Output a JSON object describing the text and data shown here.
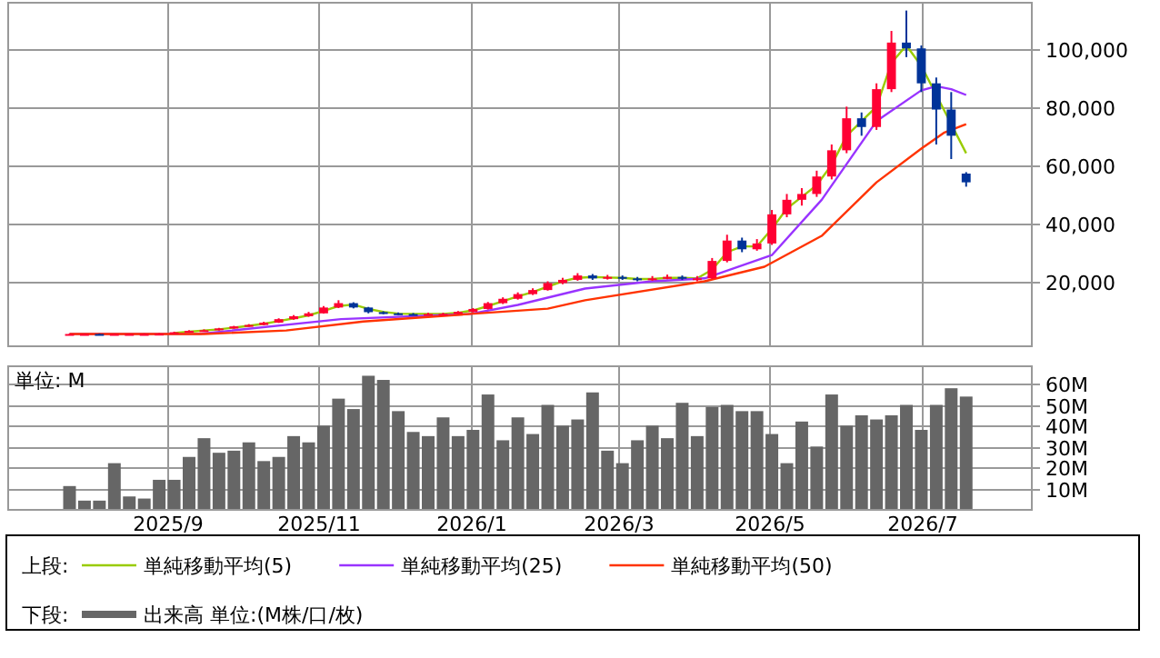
{
  "chart_data": [
    {
      "type": "candlestick",
      "legend": "bottom",
      "legend_title": "上段:",
      "grid": true,
      "tick_labels": "y",
      "x": [
        "2025-07-24",
        "2025-07-30",
        "2025-08-05",
        "2025-08-11",
        "2025-08-17",
        "2025-08-23",
        "2025-08-29",
        "2025-09-04",
        "2025-09-10",
        "2025-09-16",
        "2025-09-22",
        "2025-09-28",
        "2025-10-04",
        "2025-10-10",
        "2025-10-16",
        "2025-10-22",
        "2025-10-28",
        "2025-11-03",
        "2025-11-09",
        "2025-11-15",
        "2025-11-21",
        "2025-11-27",
        "2025-12-03",
        "2025-12-09",
        "2025-12-15",
        "2025-12-21",
        "2025-12-27",
        "2026-01-02",
        "2026-01-08",
        "2026-01-14",
        "2026-01-20",
        "2026-01-26",
        "2026-02-01",
        "2026-02-07",
        "2026-02-13",
        "2026-02-19",
        "2026-02-25",
        "2026-03-03",
        "2026-03-09",
        "2026-03-15",
        "2026-03-21",
        "2026-03-27",
        "2026-04-02",
        "2026-04-08",
        "2026-04-14",
        "2026-04-20",
        "2026-04-26",
        "2026-05-02",
        "2026-05-08",
        "2026-05-14",
        "2026-05-20",
        "2026-05-26",
        "2026-06-01",
        "2026-06-07",
        "2026-06-13",
        "2026-06-19",
        "2026-06-25",
        "2026-07-01",
        "2026-07-07",
        "2026-07-13",
        "2026-07-19"
      ],
      "ohlc": [
        [
          1800,
          2000,
          1700,
          1900
        ],
        [
          1900,
          2000,
          1800,
          1900
        ],
        [
          1900,
          2000,
          1700,
          1800
        ],
        [
          1800,
          2000,
          1700,
          1900
        ],
        [
          1900,
          2000,
          1800,
          1900
        ],
        [
          1900,
          2100,
          1800,
          1900
        ],
        [
          1900,
          2200,
          1800,
          2000
        ],
        [
          2000,
          2700,
          2000,
          2500
        ],
        [
          2500,
          3200,
          2400,
          3000
        ],
        [
          3000,
          3500,
          2900,
          3200
        ],
        [
          3200,
          4000,
          3100,
          3800
        ],
        [
          3800,
          4700,
          3700,
          4500
        ],
        [
          4500,
          5300,
          4400,
          5000
        ],
        [
          5000,
          6100,
          4900,
          5800
        ],
        [
          5800,
          7300,
          5700,
          7000
        ],
        [
          7000,
          8400,
          6800,
          8000
        ],
        [
          8000,
          9500,
          7800,
          9000
        ],
        [
          9000,
          11500,
          8900,
          11000
        ],
        [
          11000,
          13500,
          10800,
          12500
        ],
        [
          12500,
          12800,
          10700,
          11000
        ],
        [
          11000,
          11200,
          9000,
          9400
        ],
        [
          9400,
          9700,
          8700,
          9000
        ],
        [
          9000,
          9300,
          8400,
          8750
        ],
        [
          8750,
          9100,
          8300,
          8700
        ],
        [
          8700,
          9200,
          8400,
          8800
        ],
        [
          8800,
          9200,
          8500,
          8800
        ],
        [
          8800,
          9800,
          8700,
          9500
        ],
        [
          9500,
          10800,
          9300,
          10500
        ],
        [
          10500,
          12900,
          10300,
          12500
        ],
        [
          12500,
          14500,
          12200,
          14000
        ],
        [
          14000,
          16200,
          13700,
          15600
        ],
        [
          15600,
          17600,
          15300,
          17000
        ],
        [
          17000,
          20000,
          16800,
          19400
        ],
        [
          19400,
          21200,
          19000,
          20500
        ],
        [
          20500,
          22800,
          20200,
          22000
        ],
        [
          22000,
          22500,
          20500,
          21000
        ],
        [
          21000,
          22200,
          20600,
          21500
        ],
        [
          21500,
          22000,
          20500,
          21000
        ],
        [
          21000,
          21500,
          20000,
          20500
        ],
        [
          20500,
          21800,
          20200,
          21000
        ],
        [
          21000,
          22300,
          20700,
          21500
        ],
        [
          21500,
          22000,
          20500,
          21000
        ],
        [
          21000,
          21800,
          20000,
          21000
        ],
        [
          21000,
          28000,
          20800,
          27000
        ],
        [
          27000,
          36000,
          26500,
          34000
        ],
        [
          34000,
          35000,
          30000,
          31000
        ],
        [
          31000,
          34500,
          30500,
          33000
        ],
        [
          33000,
          44500,
          32500,
          43000
        ],
        [
          43000,
          50000,
          42000,
          48000
        ],
        [
          48000,
          52000,
          46000,
          50000
        ],
        [
          50000,
          58000,
          49000,
          56000
        ],
        [
          56000,
          67000,
          55000,
          65000
        ],
        [
          65000,
          80000,
          64000,
          76000
        ],
        [
          76000,
          78000,
          70000,
          73000
        ],
        [
          73000,
          88000,
          72000,
          86000
        ],
        [
          86000,
          106000,
          85000,
          102000
        ],
        [
          102000,
          113000,
          97000,
          100000
        ],
        [
          100000,
          101000,
          85000,
          88000
        ],
        [
          88000,
          90000,
          67000,
          79000
        ],
        [
          79000,
          85000,
          62000,
          70000
        ],
        [
          57000,
          57500,
          52500,
          54000
        ]
      ],
      "colors": [
        "#ff0033",
        "#ff0033",
        "#003399",
        "#ff0033",
        "#ff0033",
        "#ff0033",
        "#ff0033",
        "#ff0033",
        "#ff0033",
        "#ff0033",
        "#ff0033",
        "#ff0033",
        "#ff0033",
        "#ff0033",
        "#ff0033",
        "#ff0033",
        "#ff0033",
        "#ff0033",
        "#ff0033",
        "#003399",
        "#003399",
        "#003399",
        "#003399",
        "#003399",
        "#ff0033",
        "#ff0033",
        "#ff0033",
        "#ff0033",
        "#ff0033",
        "#ff0033",
        "#ff0033",
        "#ff0033",
        "#ff0033",
        "#ff0033",
        "#ff0033",
        "#003399",
        "#ff0033",
        "#003399",
        "#003399",
        "#ff0033",
        "#ff0033",
        "#003399",
        "#ff0033",
        "#ff0033",
        "#ff0033",
        "#003399",
        "#ff0033",
        "#ff0033",
        "#ff0033",
        "#ff0033",
        "#ff0033",
        "#ff0033",
        "#ff0033",
        "#003399",
        "#ff0033",
        "#ff0033",
        "#003399",
        "#003399",
        "#003399",
        "#003399",
        "#003399"
      ],
      "series": [
        {
          "name": "単純移動平均(5)",
          "type": "line",
          "color": "#99cc00",
          "values": [
            null,
            null,
            null,
            null,
            null,
            null,
            null,
            2200,
            2700,
            3100,
            3500,
            4100,
            4700,
            5400,
            6300,
            7300,
            8300,
            9800,
            11500,
            12000,
            10500,
            9500,
            8900,
            8800,
            8800,
            8800,
            9200,
            10000,
            11500,
            13200,
            14800,
            16300,
            18200,
            20000,
            21200,
            21500,
            21300,
            21200,
            20800,
            20800,
            21200,
            21200,
            21000,
            24000,
            30000,
            32000,
            32000,
            38000,
            45000,
            49000,
            53000,
            60000,
            70000,
            75000,
            80000,
            95000,
            101000,
            94000,
            84000,
            74000,
            64000
          ]
        },
        {
          "name": "単純移動平均(25)",
          "type": "line",
          "color": "#9933ff",
          "x": [
            "2025-07-24",
            "2025-09-15",
            "2025-11-10",
            "2026-01-01",
            "2026-01-20",
            "2026-02-16",
            "2026-03-15",
            "2026-04-05",
            "2026-05-02",
            "2026-05-22",
            "2026-06-13",
            "2026-07-01",
            "2026-07-07",
            "2026-07-13",
            "2026-07-19"
          ],
          "values": [
            1900,
            2000,
            7000,
            8800,
            11900,
            17500,
            20000,
            21000,
            29000,
            48000,
            75000,
            85600,
            87000,
            86000,
            84000
          ]
        },
        {
          "name": "単純移動平均(50)",
          "type": "line",
          "color": "#ff3300",
          "x": [
            "2025-07-24",
            "2025-09-16",
            "2025-10-19",
            "2025-11-19",
            "2026-01-01",
            "2026-02-01",
            "2026-02-16",
            "2026-04-05",
            "2026-04-29",
            "2026-05-22",
            "2026-06-13",
            "2026-07-01",
            "2026-07-10",
            "2026-07-19"
          ],
          "values": [
            1900,
            1900,
            3100,
            6200,
            8800,
            10600,
            13500,
            20000,
            25000,
            35600,
            54000,
            65600,
            71000,
            74000
          ]
        }
      ],
      "xlim": [
        "2025-06-29",
        "2026-08-14"
      ],
      "xticks": [
        {
          "value": "2025-09-01",
          "label": null
        },
        {
          "value": "2025-11-01",
          "label": null
        },
        {
          "value": "2026-01-01",
          "label": null
        },
        {
          "value": "2026-03-01",
          "label": null
        },
        {
          "value": "2026-05-01",
          "label": null
        },
        {
          "value": "2026-07-01",
          "label": null
        }
      ],
      "ylim": [
        -2000,
        116000
      ],
      "yticks": [
        {
          "value": 20000,
          "label": "20,000"
        },
        {
          "value": 40000,
          "label": "40,000"
        },
        {
          "value": 60000,
          "label": "60,000"
        },
        {
          "value": 80000,
          "label": "80,000"
        },
        {
          "value": 100000,
          "label": "100,000"
        }
      ]
    },
    {
      "type": "bar",
      "legend": "bottom",
      "legend_title": "下段:",
      "grid": true,
      "annotations": [
        "単位: M"
      ],
      "x": [
        "2025-07-24",
        "2025-07-30",
        "2025-08-05",
        "2025-08-11",
        "2025-08-17",
        "2025-08-23",
        "2025-08-29",
        "2025-09-04",
        "2025-09-10",
        "2025-09-16",
        "2025-09-22",
        "2025-09-28",
        "2025-10-04",
        "2025-10-10",
        "2025-10-16",
        "2025-10-22",
        "2025-10-28",
        "2025-11-03",
        "2025-11-09",
        "2025-11-15",
        "2025-11-21",
        "2025-11-27",
        "2025-12-03",
        "2025-12-09",
        "2025-12-15",
        "2025-12-21",
        "2025-12-27",
        "2026-01-02",
        "2026-01-08",
        "2026-01-14",
        "2026-01-20",
        "2026-01-26",
        "2026-02-01",
        "2026-02-07",
        "2026-02-13",
        "2026-02-19",
        "2026-02-25",
        "2026-03-03",
        "2026-03-09",
        "2026-03-15",
        "2026-03-21",
        "2026-03-27",
        "2026-04-02",
        "2026-04-08",
        "2026-04-14",
        "2026-04-20",
        "2026-04-26",
        "2026-05-02",
        "2026-05-08",
        "2026-05-14",
        "2026-05-20",
        "2026-05-26",
        "2026-06-01",
        "2026-06-07",
        "2026-06-13",
        "2026-06-19",
        "2026-06-25",
        "2026-07-01",
        "2026-07-07",
        "2026-07-13",
        "2026-07-19"
      ],
      "series": [
        {
          "name": "出来高 単位:(M株/口/枚)",
          "color": "#666666",
          "values": [
            11,
            4,
            4,
            22,
            6,
            5,
            14,
            14,
            25,
            34,
            27,
            28,
            32,
            23,
            25,
            35,
            32,
            40,
            53,
            48,
            64,
            62,
            47,
            37,
            35,
            44,
            35,
            38,
            55,
            33,
            44,
            36,
            50,
            40,
            43,
            56,
            28,
            22,
            33,
            40,
            34,
            51,
            35,
            49,
            50,
            47,
            47,
            36,
            22,
            42,
            30,
            55,
            40,
            45,
            43,
            45,
            50,
            38,
            50,
            58,
            54
          ]
        }
      ],
      "xlim": [
        "2025-06-29",
        "2026-08-14"
      ],
      "xticks": [
        {
          "value": "2025-09-01",
          "label": "2025/9"
        },
        {
          "value": "2025-11-01",
          "label": "2025/11"
        },
        {
          "value": "2026-01-01",
          "label": "2026/1"
        },
        {
          "value": "2026-03-01",
          "label": "2026/3"
        },
        {
          "value": "2026-05-01",
          "label": "2026/5"
        },
        {
          "value": "2026-07-01",
          "label": "2026/7"
        }
      ],
      "ylim": [
        0,
        69
      ],
      "yticks": [
        {
          "value": 10,
          "label": "10M"
        },
        {
          "value": 20,
          "label": "20M"
        },
        {
          "value": 30,
          "label": "30M"
        },
        {
          "value": 40,
          "label": "40M"
        },
        {
          "value": 50,
          "label": "50M"
        },
        {
          "value": 60,
          "label": "60M"
        }
      ]
    }
  ]
}
